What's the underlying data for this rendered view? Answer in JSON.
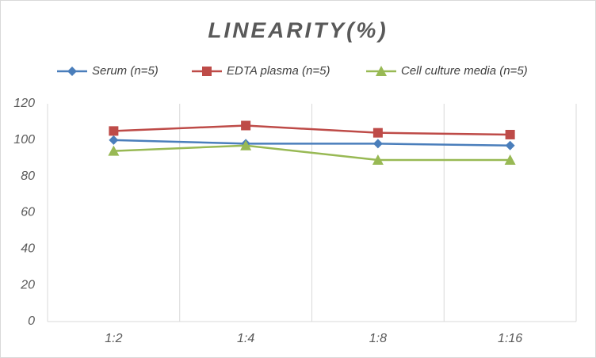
{
  "chart_data": {
    "type": "line",
    "title": "LINEARITY(%)",
    "categories": [
      "1:2",
      "1:4",
      "1:8",
      "1:16"
    ],
    "series": [
      {
        "name": "Serum (n=5)",
        "color": "#4a7ebb",
        "marker": "diamond",
        "values": [
          100,
          98,
          98,
          97
        ]
      },
      {
        "name": "EDTA plasma (n=5)",
        "color": "#be4b48",
        "marker": "square",
        "values": [
          105,
          108,
          104,
          103
        ]
      },
      {
        "name": "Cell culture media (n=5)",
        "color": "#98b954",
        "marker": "triangle",
        "values": [
          94,
          97,
          89,
          89
        ]
      }
    ],
    "ylim": [
      0,
      120
    ],
    "yticks": [
      0,
      20,
      40,
      60,
      80,
      100,
      120
    ],
    "grid": true,
    "legend": "top"
  }
}
